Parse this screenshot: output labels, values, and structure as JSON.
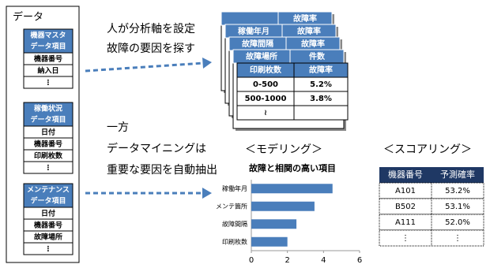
{
  "left_panel": {
    "title": "データ",
    "groups": [
      {
        "header": [
          "機器マスタ",
          "データ項目"
        ],
        "items": [
          "機器番号",
          "納入日",
          "⋮"
        ]
      },
      {
        "header": [
          "稼働状況",
          "データ項目"
        ],
        "items": [
          "日付",
          "機器番号",
          "印刷枚数",
          "⋮"
        ]
      },
      {
        "header": [
          "メンテナンス",
          "データ項目"
        ],
        "items": [
          "日付",
          "機器番号",
          "故障場所",
          "⋮"
        ]
      }
    ]
  },
  "notes": {
    "manual": [
      "人が分析軸を設定",
      "故障の要因を探す"
    ],
    "mining": [
      "一方",
      "データマイニングは",
      "重要な要因を自動抽出"
    ]
  },
  "cross_tables": {
    "cards": [
      [
        "故障率"
      ],
      [
        "稼働年月",
        "故障率"
      ],
      [
        "故障間隔",
        "故障率"
      ],
      [
        "故障場所",
        "件数"
      ]
    ],
    "front": {
      "header": [
        "印刷枚数",
        "故障率"
      ],
      "rows": [
        [
          "0-500",
          "5.2%"
        ],
        [
          "500-1000",
          "3.8%"
        ],
        [
          "≀"
        ]
      ]
    }
  },
  "modeling": {
    "heading": "＜モデリング＞",
    "chart": {
      "type": "bar",
      "title": "故障と相関の高い項目",
      "categories": [
        "稼働年月",
        "メンテ箇所",
        "故障間隔",
        "印刷枚数"
      ],
      "values": [
        4.5,
        3.5,
        2.5,
        2.0
      ],
      "color": "#4a7ebb",
      "xlim": [
        0,
        6
      ],
      "xticks": [
        0,
        2,
        4,
        6
      ]
    }
  },
  "scoring": {
    "heading": "＜スコアリング＞",
    "table": {
      "header": [
        "機器番号",
        "予測確率"
      ],
      "rows": [
        [
          "A101",
          "53.2%"
        ],
        [
          "B502",
          "53.1%"
        ],
        [
          "A111",
          "52.0%"
        ],
        [
          "⋮",
          "⋮"
        ]
      ]
    }
  }
}
